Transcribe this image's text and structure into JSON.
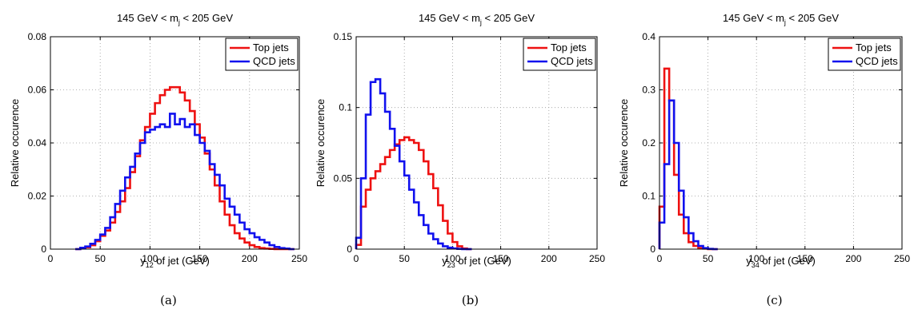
{
  "chart_data": [
    {
      "type": "line",
      "panel": "a",
      "caption": "(a)",
      "title": {
        "pre": "145 GeV < m",
        "sub": "j",
        "post": " < 205 GeV"
      },
      "xlabel": {
        "pre": "y",
        "sub": "12",
        "post": " of jet (GeV)"
      },
      "ylabel": "Relative occurence",
      "xlim": [
        0,
        250
      ],
      "ylim": [
        0,
        0.08
      ],
      "xticks": [
        "0",
        "50",
        "100",
        "150",
        "200",
        "250"
      ],
      "yticks": [
        "0",
        "0.02",
        "0.04",
        "0.06",
        "0.08"
      ],
      "grid": true,
      "legend_position": "top-right",
      "bin_width": 5,
      "series": [
        {
          "name": "Top jets",
          "color": "#ee1111",
          "x": [
            25,
            30,
            35,
            40,
            45,
            50,
            55,
            60,
            65,
            70,
            75,
            80,
            85,
            90,
            95,
            100,
            105,
            110,
            115,
            120,
            125,
            130,
            135,
            140,
            145,
            150,
            155,
            160,
            165,
            170,
            175,
            180,
            185,
            190,
            195,
            200,
            205,
            210,
            215,
            220,
            225,
            230,
            235,
            240
          ],
          "y": [
            0,
            0.0003,
            0.0007,
            0.0015,
            0.003,
            0.005,
            0.007,
            0.01,
            0.014,
            0.018,
            0.023,
            0.029,
            0.035,
            0.041,
            0.046,
            0.051,
            0.055,
            0.058,
            0.06,
            0.061,
            0.061,
            0.059,
            0.056,
            0.052,
            0.047,
            0.042,
            0.036,
            0.03,
            0.024,
            0.018,
            0.013,
            0.009,
            0.006,
            0.004,
            0.0025,
            0.0015,
            0.0008,
            0.0004,
            0.0002,
            0.0001,
            0,
            0,
            0,
            0
          ]
        },
        {
          "name": "QCD jets",
          "color": "#1111ee",
          "x": [
            25,
            30,
            35,
            40,
            45,
            50,
            55,
            60,
            65,
            70,
            75,
            80,
            85,
            90,
            95,
            100,
            105,
            110,
            115,
            120,
            125,
            130,
            135,
            140,
            145,
            150,
            155,
            160,
            165,
            170,
            175,
            180,
            185,
            190,
            195,
            200,
            205,
            210,
            215,
            220,
            225,
            230,
            235,
            240
          ],
          "y": [
            0,
            0.0005,
            0.001,
            0.002,
            0.0035,
            0.0055,
            0.008,
            0.012,
            0.017,
            0.022,
            0.027,
            0.031,
            0.036,
            0.04,
            0.044,
            0.045,
            0.046,
            0.047,
            0.046,
            0.051,
            0.047,
            0.049,
            0.046,
            0.047,
            0.043,
            0.04,
            0.037,
            0.032,
            0.028,
            0.024,
            0.019,
            0.016,
            0.013,
            0.01,
            0.0075,
            0.006,
            0.0045,
            0.0035,
            0.0025,
            0.0015,
            0.0008,
            0.0004,
            0.0002,
            0
          ]
        }
      ]
    },
    {
      "type": "line",
      "panel": "b",
      "caption": "(b)",
      "title": {
        "pre": "145 GeV < m",
        "sub": "j",
        "post": " < 205 GeV"
      },
      "xlabel": {
        "pre": "y",
        "sub": "23",
        "post": " of jet (GeV)"
      },
      "ylabel": "Relative occurence",
      "xlim": [
        0,
        250
      ],
      "ylim": [
        0,
        0.15
      ],
      "xticks": [
        "0",
        "50",
        "100",
        "150",
        "200",
        "250"
      ],
      "yticks": [
        "0",
        "0.05",
        "0.1",
        "0.15"
      ],
      "grid": true,
      "legend_position": "top-right",
      "bin_width": 5,
      "series": [
        {
          "name": "Top jets",
          "color": "#ee1111",
          "x": [
            0,
            5,
            10,
            15,
            20,
            25,
            30,
            35,
            40,
            45,
            50,
            55,
            60,
            65,
            70,
            75,
            80,
            85,
            90,
            95,
            100,
            105,
            110,
            115
          ],
          "y": [
            0.003,
            0.03,
            0.042,
            0.05,
            0.055,
            0.06,
            0.065,
            0.07,
            0.074,
            0.077,
            0.079,
            0.077,
            0.075,
            0.07,
            0.062,
            0.053,
            0.043,
            0.031,
            0.02,
            0.011,
            0.005,
            0.002,
            0.0005,
            0
          ]
        },
        {
          "name": "QCD jets",
          "color": "#1111ee",
          "x": [
            0,
            5,
            10,
            15,
            20,
            25,
            30,
            35,
            40,
            45,
            50,
            55,
            60,
            65,
            70,
            75,
            80,
            85,
            90,
            95,
            100,
            105,
            110,
            115
          ],
          "y": [
            0.008,
            0.05,
            0.095,
            0.118,
            0.12,
            0.11,
            0.097,
            0.085,
            0.073,
            0.062,
            0.052,
            0.042,
            0.033,
            0.024,
            0.017,
            0.011,
            0.007,
            0.004,
            0.002,
            0.001,
            0.0005,
            0.0002,
            0,
            0
          ]
        }
      ]
    },
    {
      "type": "line",
      "panel": "c",
      "caption": "(c)",
      "title": {
        "pre": "145 GeV < m",
        "sub": "j",
        "post": " < 205 GeV"
      },
      "xlabel": {
        "pre": "y",
        "sub": "34",
        "post": " of jet (GeV)"
      },
      "ylabel": "Relative occurence",
      "xlim": [
        0,
        250
      ],
      "ylim": [
        0,
        0.4
      ],
      "xticks": [
        "0",
        "50",
        "100",
        "150",
        "200",
        "250"
      ],
      "yticks": [
        "0",
        "0.1",
        "0.2",
        "0.3",
        "0.4"
      ],
      "grid": true,
      "legend_position": "top-right",
      "bin_width": 5,
      "series": [
        {
          "name": "Top jets",
          "color": "#ee1111",
          "x": [
            0,
            5,
            10,
            15,
            20,
            25,
            30,
            35,
            40,
            45,
            50,
            55
          ],
          "y": [
            0.08,
            0.34,
            0.28,
            0.14,
            0.065,
            0.03,
            0.013,
            0.006,
            0.002,
            0.001,
            0,
            0
          ]
        },
        {
          "name": "QCD jets",
          "color": "#1111ee",
          "x": [
            0,
            5,
            10,
            15,
            20,
            25,
            30,
            35,
            40,
            45,
            50,
            55
          ],
          "y": [
            0.05,
            0.16,
            0.28,
            0.2,
            0.11,
            0.06,
            0.03,
            0.015,
            0.006,
            0.002,
            0.0005,
            0
          ]
        }
      ]
    }
  ]
}
